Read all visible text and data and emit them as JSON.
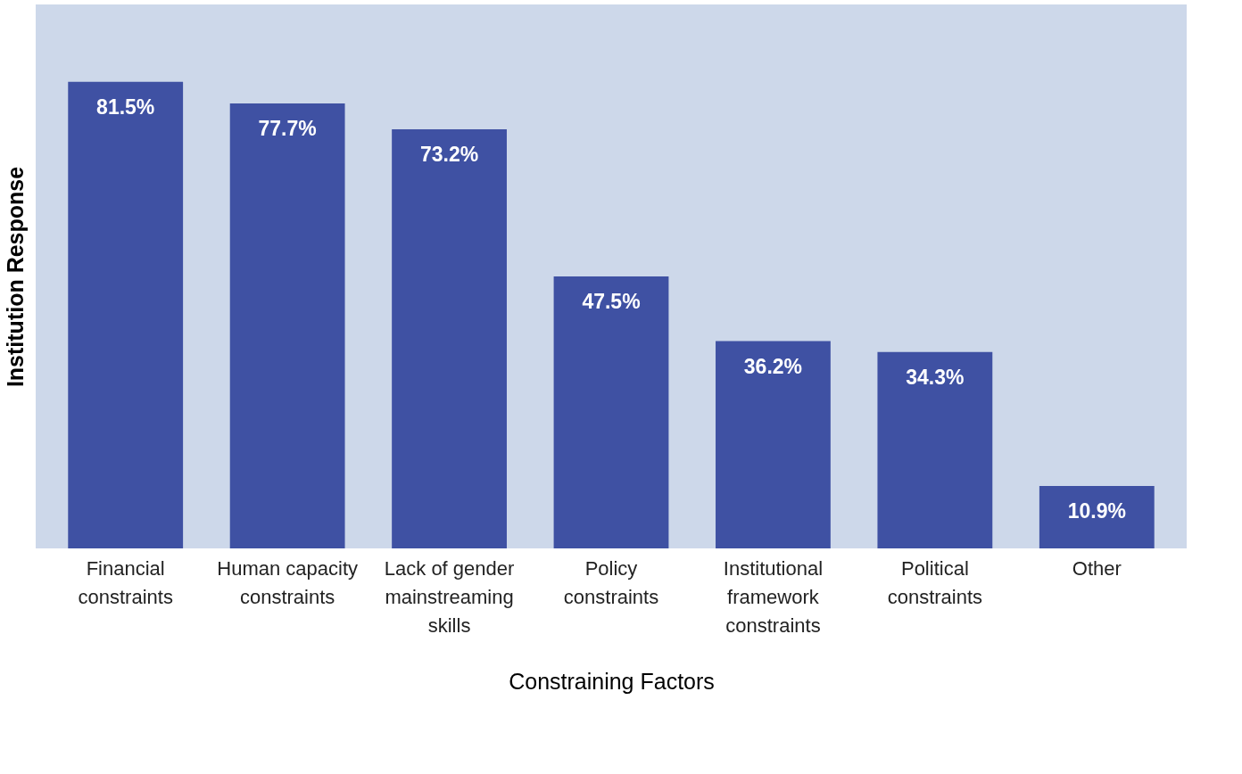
{
  "chart_data": {
    "type": "bar",
    "xlabel": "Constraining Factors",
    "ylabel": "Institution Response",
    "categories": [
      "Financial constraints",
      "Human capacity constraints",
      "Lack of gender mainstreaming skills",
      "Policy constraints",
      "Institutional framework constraints",
      "Political constraints",
      "Other"
    ],
    "values": [
      81.5,
      77.7,
      73.2,
      47.5,
      36.2,
      34.3,
      10.9
    ],
    "value_labels": [
      "81.5%",
      "77.7%",
      "73.2%",
      "47.5%",
      "36.2%",
      "34.3%",
      "10.9%"
    ],
    "color": "#3f51a3",
    "ylim": [
      0,
      95
    ],
    "tick_labels": "x",
    "grid": false
  }
}
